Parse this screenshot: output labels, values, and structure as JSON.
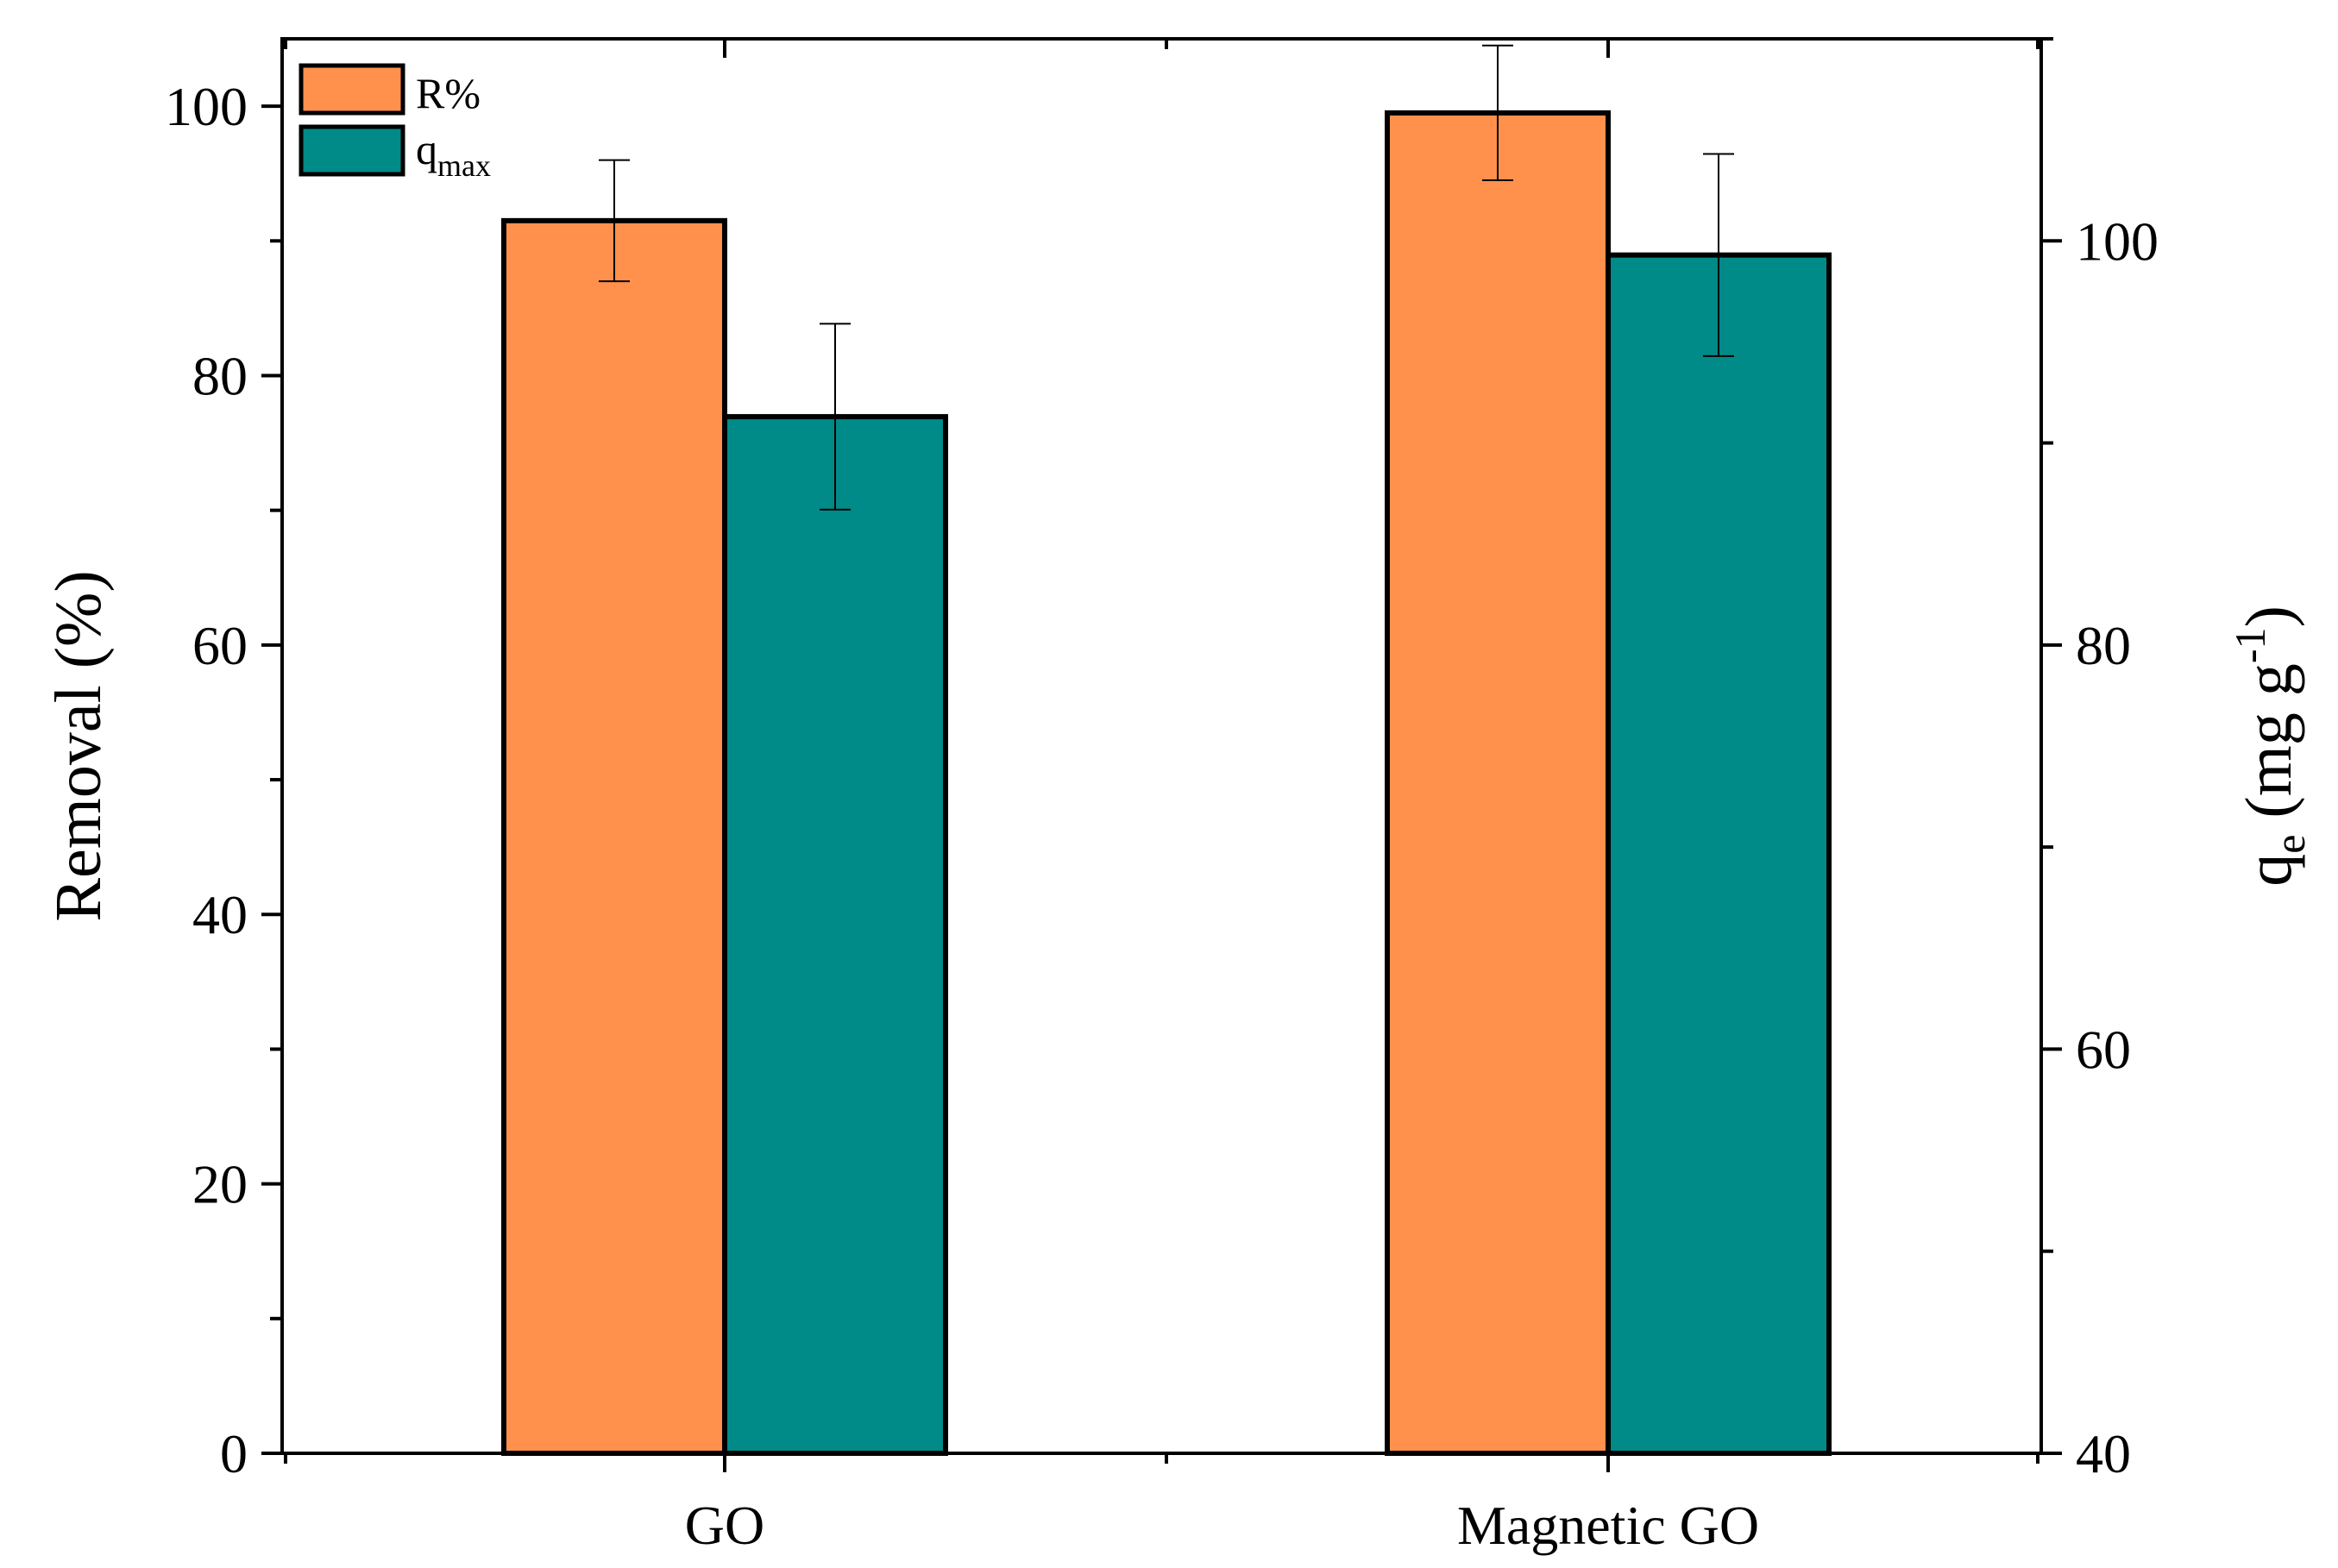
{
  "chart_data": {
    "type": "bar",
    "categories": [
      "GO",
      "Magnetic GO"
    ],
    "series": [
      {
        "name": "R%",
        "axis": "left",
        "color": "#FF914D",
        "values": [
          91.5,
          99.5
        ],
        "errors": [
          4.5,
          5.0
        ]
      },
      {
        "name": "q_max",
        "axis": "right",
        "color": "#008A88",
        "values": [
          91.3,
          99.3
        ],
        "errors": [
          4.6,
          5.0
        ]
      }
    ],
    "y_left": {
      "label": "Removal (%)",
      "ylim": [
        0,
        105
      ],
      "ticks": [
        0,
        20,
        40,
        60,
        80,
        100
      ],
      "tick_labels": [
        "0",
        "20",
        "40",
        "60",
        "80",
        "100"
      ],
      "minor_ticks": [
        10,
        30,
        50,
        70,
        90
      ]
    },
    "y_right": {
      "label_main": "q",
      "label_sub": "e",
      "label_rest": " (mg g",
      "label_sup": "-1",
      "label_close": ")",
      "ylim": [
        40,
        110
      ],
      "ticks": [
        40,
        60,
        80,
        100
      ],
      "tick_labels": [
        "40",
        "60",
        "80",
        "100"
      ],
      "minor_ticks": [
        50,
        70,
        90,
        110
      ]
    },
    "legend": {
      "position": "top-left",
      "entries": [
        {
          "main": "R%",
          "sub": ""
        },
        {
          "main": "q",
          "sub": "max"
        }
      ]
    },
    "grid": false
  }
}
